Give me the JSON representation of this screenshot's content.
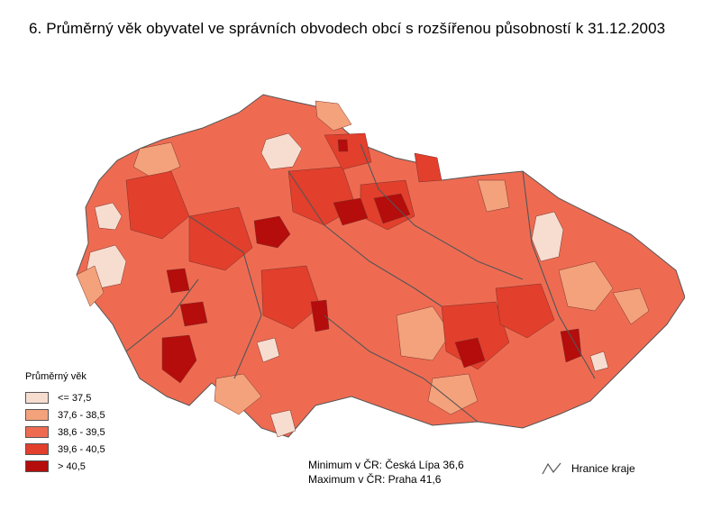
{
  "title": "6. Průměrný věk obyvatel ve správních obvodech obcí s rozšířenou působností k 31.12.2003",
  "legend": {
    "title": "Průměrný věk",
    "items": [
      {
        "label": "<= 37,5",
        "color": "#f6ddd0"
      },
      {
        "label": "37,6 - 38,5",
        "color": "#f4a27c"
      },
      {
        "label": "38,6 - 39,5",
        "color": "#ee6b52"
      },
      {
        "label": "39,6 - 40,5",
        "color": "#e23f2d"
      },
      {
        "label": "> 40,5",
        "color": "#b50c0c"
      }
    ]
  },
  "stats": {
    "minimum": "Minimum v ČR: Česká Lípa 36,6",
    "maximum": "Maximum v ČR: Praha 41,6"
  },
  "boundary_label": "Hranice kraje",
  "colors": {
    "outline": "#555555",
    "base": "#ee6b52"
  }
}
